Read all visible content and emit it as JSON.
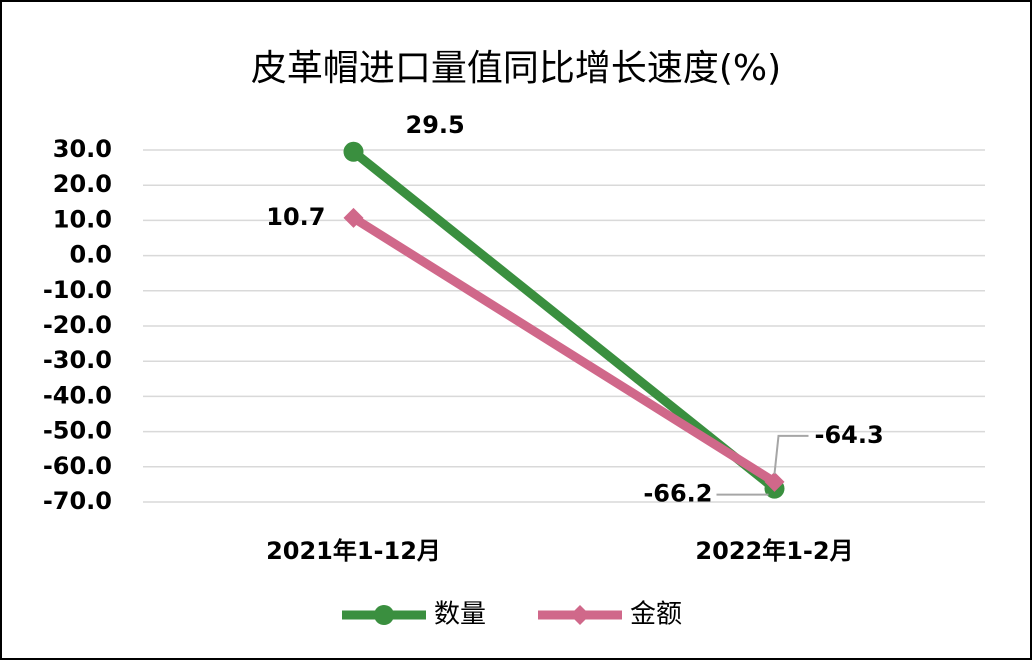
{
  "chart_data": {
    "type": "line",
    "title": "皮革帽进口量值同比增长速度(%)",
    "categories": [
      "2021年1-12月",
      "2022年1-2月"
    ],
    "series": [
      {
        "name": "数量",
        "color": "#3a8f3f",
        "marker": "circle",
        "values": [
          29.5,
          -66.2
        ]
      },
      {
        "name": "金额",
        "color": "#d0688a",
        "marker": "diamond",
        "values": [
          10.7,
          -64.3
        ]
      }
    ],
    "ylim": [
      -70,
      30
    ],
    "yticks": [
      {
        "value": 30,
        "label": "30.0"
      },
      {
        "value": 20,
        "label": "20.0"
      },
      {
        "value": 10,
        "label": "10.0"
      },
      {
        "value": 0,
        "label": "0.0"
      },
      {
        "value": -10,
        "label": "-10.0"
      },
      {
        "value": -20,
        "label": "-20.0"
      },
      {
        "value": -30,
        "label": "-30.0"
      },
      {
        "value": -40,
        "label": "-40.0"
      },
      {
        "value": -50,
        "label": "-50.0"
      },
      {
        "value": -60,
        "label": "-60.0"
      },
      {
        "value": -70,
        "label": "-70.0"
      }
    ],
    "grid": true,
    "legend": "bottom"
  }
}
